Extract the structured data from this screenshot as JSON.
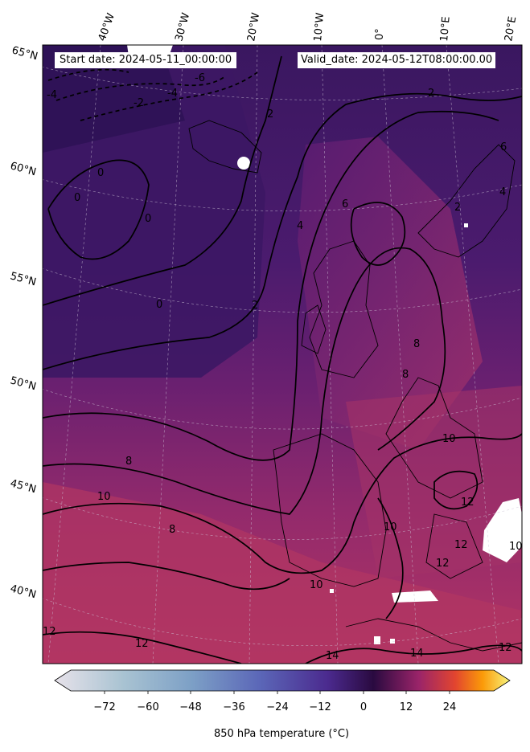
{
  "header": {
    "start_date": "Start date: 2024-05-11_00:00:00",
    "valid_date": "Valid_date: 2024-05-12T08:00:00.00"
  },
  "map": {
    "projection": "conic",
    "longitude_labels": [
      "40°W",
      "30°W",
      "20°W",
      "10°W",
      "0°",
      "10°E",
      "20°E"
    ],
    "latitude_labels": [
      "65°N",
      "60°N",
      "55°N",
      "50°N",
      "45°N",
      "40°N"
    ],
    "contour_labels": [
      "-6",
      "-4",
      "-2",
      "-4",
      "2",
      "0",
      "0",
      "0",
      "0",
      "2",
      "2",
      "4",
      "6",
      "2",
      "4",
      "6",
      "8",
      "8",
      "8",
      "10",
      "10",
      "8",
      "10",
      "12",
      "10",
      "12",
      "12",
      "12",
      "12",
      "14",
      "14",
      "10",
      "12"
    ],
    "variable": "850 hPa temperature"
  },
  "colorbar": {
    "ticks": [
      "−72",
      "−60",
      "−48",
      "−36",
      "−24",
      "−12",
      "0",
      "12",
      "24"
    ],
    "label": "850 hPa temperature (°C)",
    "range": [
      -80,
      32
    ],
    "colormap": "inferno-like (light grey-blue → purple → dark at 0 → magenta → orange → yellow)"
  }
}
